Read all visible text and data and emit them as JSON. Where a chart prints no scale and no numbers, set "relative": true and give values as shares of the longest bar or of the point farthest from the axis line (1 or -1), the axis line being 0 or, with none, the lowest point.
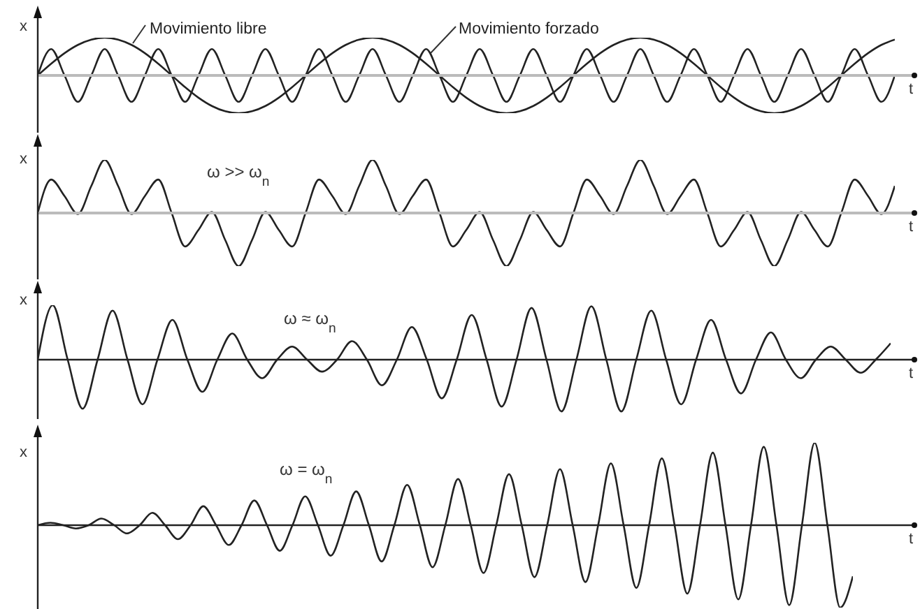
{
  "chart_data": [
    {
      "type": "line",
      "relative": true,
      "xlabel": "t",
      "ylabel": "x",
      "marker": "none",
      "categories": [
        null,
        null,
        null,
        null,
        null,
        null,
        null,
        null,
        null,
        null,
        null,
        null,
        null,
        null,
        null,
        null,
        null,
        null,
        null,
        null,
        null,
        null,
        null,
        null,
        null,
        null,
        null,
        null,
        null,
        null,
        null,
        null,
        null,
        null,
        null,
        null,
        null,
        null,
        null,
        null,
        null,
        null,
        null,
        null,
        null,
        null,
        null,
        null,
        null,
        null,
        null,
        null,
        null,
        null,
        null,
        null,
        null,
        null,
        null,
        null,
        null,
        null,
        null,
        null,
        null
      ],
      "series": [
        {
          "name": "Movimiento libre",
          "color": "#222222",
          "values": [
            0,
            0.31,
            0.59,
            0.81,
            0.95,
            1,
            0.95,
            0.81,
            0.59,
            0.31,
            0,
            -0.31,
            -0.59,
            -0.81,
            -0.95,
            -1,
            -0.95,
            -0.81,
            -0.59,
            -0.31,
            0,
            0.31,
            0.59,
            0.81,
            0.95,
            1,
            0.95,
            0.81,
            0.59,
            0.31,
            0,
            -0.31,
            -0.59,
            -0.81,
            -0.95,
            -1,
            -0.95,
            -0.81,
            -0.59,
            -0.31,
            0,
            0.31,
            0.59,
            0.81,
            0.95,
            1,
            0.95,
            0.81,
            0.59,
            0.31,
            0,
            -0.31,
            -0.59,
            -0.81,
            -0.95,
            -1,
            -0.95,
            -0.81,
            -0.59,
            -0.31,
            0,
            0.31,
            0.59,
            0.81,
            0.95
          ]
        },
        {
          "name": "Movimiento forzado",
          "color": "#222222",
          "values": [
            0,
            0.7,
            0,
            -0.7,
            0,
            0.7,
            0,
            -0.7,
            0,
            0.7,
            0,
            -0.7,
            0,
            0.7,
            0,
            -0.7,
            0,
            0.7,
            0,
            -0.7,
            0,
            0.7,
            0,
            -0.7,
            0,
            0.7,
            0,
            -0.7,
            0,
            0.7,
            0,
            -0.7,
            0,
            0.7,
            0,
            -0.7,
            0,
            0.7,
            0,
            -0.7,
            0,
            0.7,
            0,
            -0.7,
            0,
            0.7,
            0,
            -0.7,
            0,
            0.7,
            0,
            -0.7,
            0,
            0.7,
            0,
            -0.7,
            0,
            0.7,
            0,
            -0.7,
            0,
            0.7,
            0,
            -0.7,
            0
          ]
        }
      ]
    },
    {
      "type": "line",
      "relative": true,
      "xlabel": "t",
      "ylabel": "x",
      "marker": "none",
      "annotations": [
        "ω >> ω$_{n}$"
      ],
      "categories": [
        null,
        null,
        null,
        null,
        null,
        null,
        null,
        null,
        null,
        null,
        null,
        null,
        null,
        null,
        null,
        null,
        null,
        null,
        null,
        null,
        null,
        null,
        null,
        null,
        null,
        null,
        null,
        null,
        null,
        null,
        null,
        null,
        null,
        null,
        null,
        null,
        null,
        null,
        null,
        null,
        null,
        null,
        null,
        null,
        null,
        null,
        null,
        null,
        null,
        null,
        null,
        null,
        null,
        null,
        null,
        null,
        null,
        null,
        null,
        null,
        null,
        null,
        null,
        null,
        null
      ],
      "series": [
        {
          "color": "#222222",
          "values": [
            0,
            0.63,
            0.32,
            -0.02,
            0.51,
            1,
            0.51,
            -0.02,
            0.32,
            0.63,
            0,
            -0.63,
            -0.32,
            0.02,
            -0.51,
            -1,
            -0.51,
            0.02,
            -0.32,
            -0.63,
            0,
            0.63,
            0.32,
            -0.02,
            0.51,
            1,
            0.51,
            -0.02,
            0.32,
            0.63,
            0,
            -0.63,
            -0.32,
            0.02,
            -0.51,
            -1,
            -0.51,
            0.02,
            -0.32,
            -0.63,
            0,
            0.63,
            0.32,
            -0.02,
            0.51,
            1,
            0.51,
            -0.02,
            0.32,
            0.63,
            0,
            -0.63,
            -0.32,
            0.02,
            -0.51,
            -1,
            -0.51,
            0.02,
            -0.32,
            -0.63,
            0,
            0.63,
            0.32,
            -0.02,
            0.51
          ]
        }
      ]
    },
    {
      "type": "line",
      "relative": true,
      "xlabel": "t",
      "ylabel": "x",
      "marker": "none",
      "annotations": [
        "ω ≈ ω$_{n}$"
      ],
      "categories": [
        null,
        null,
        null,
        null,
        null,
        null,
        null,
        null,
        null,
        null,
        null,
        null,
        null,
        null,
        null,
        null,
        null,
        null,
        null,
        null,
        null,
        null,
        null,
        null,
        null,
        null,
        null,
        null,
        null,
        null,
        null,
        null,
        null,
        null,
        null,
        null,
        null,
        null,
        null,
        null,
        null,
        null,
        null,
        null,
        null,
        null,
        null,
        null,
        null,
        null,
        null,
        null,
        null,
        null,
        null,
        null,
        null,
        null
      ],
      "series": [
        {
          "color": "#222222",
          "values": [
            0,
            1,
            0,
            -0.9,
            0,
            0.9,
            0,
            -0.82,
            0,
            0.73,
            0,
            -0.59,
            0,
            0.48,
            0,
            -0.34,
            0,
            0.24,
            0,
            -0.22,
            0,
            0.34,
            0,
            -0.47,
            0,
            0.6,
            0,
            -0.71,
            0,
            0.82,
            0,
            -0.86,
            0,
            0.95,
            0,
            -0.95,
            0,
            0.98,
            0,
            -0.95,
            0,
            0.9,
            0,
            -0.82,
            0,
            0.73,
            0,
            -0.62,
            0,
            0.5,
            0,
            -0.34,
            0,
            0.24,
            0,
            -0.24,
            0,
            0.3
          ]
        }
      ]
    },
    {
      "type": "line",
      "relative": true,
      "xlabel": "t",
      "ylabel": "x",
      "marker": "none",
      "annotations": [
        "ω = ω$_{n}$"
      ],
      "categories": [
        null,
        null,
        null,
        null,
        null,
        null,
        null,
        null,
        null,
        null,
        null,
        null,
        null,
        null,
        null,
        null,
        null,
        null,
        null,
        null,
        null,
        null,
        null,
        null,
        null,
        null,
        null,
        null,
        null,
        null,
        null,
        null,
        null,
        null,
        null,
        null,
        null,
        null,
        null,
        null,
        null,
        null,
        null,
        null,
        null,
        null,
        null,
        null,
        null,
        null,
        null,
        null,
        null,
        null,
        null,
        null,
        null,
        null,
        null,
        null,
        null,
        null,
        null,
        null,
        null
      ],
      "series": [
        {
          "color": "#222222",
          "values": [
            0,
            0.03,
            0,
            -0.04,
            0,
            0.08,
            0,
            -0.1,
            0,
            0.15,
            0,
            -0.17,
            0,
            0.23,
            0,
            -0.24,
            0,
            0.3,
            0,
            -0.31,
            0,
            0.35,
            0,
            -0.37,
            0,
            0.41,
            0,
            -0.44,
            0,
            0.49,
            0,
            -0.51,
            0,
            0.56,
            0,
            -0.58,
            0,
            0.62,
            0,
            -0.63,
            0,
            0.68,
            0,
            -0.69,
            0,
            0.75,
            0,
            -0.76,
            0,
            0.81,
            0,
            -0.83,
            0,
            0.88,
            0,
            -0.9,
            0,
            0.95,
            0,
            -0.97,
            0,
            1,
            0,
            -1,
            -0.62
          ]
        }
      ]
    }
  ]
}
